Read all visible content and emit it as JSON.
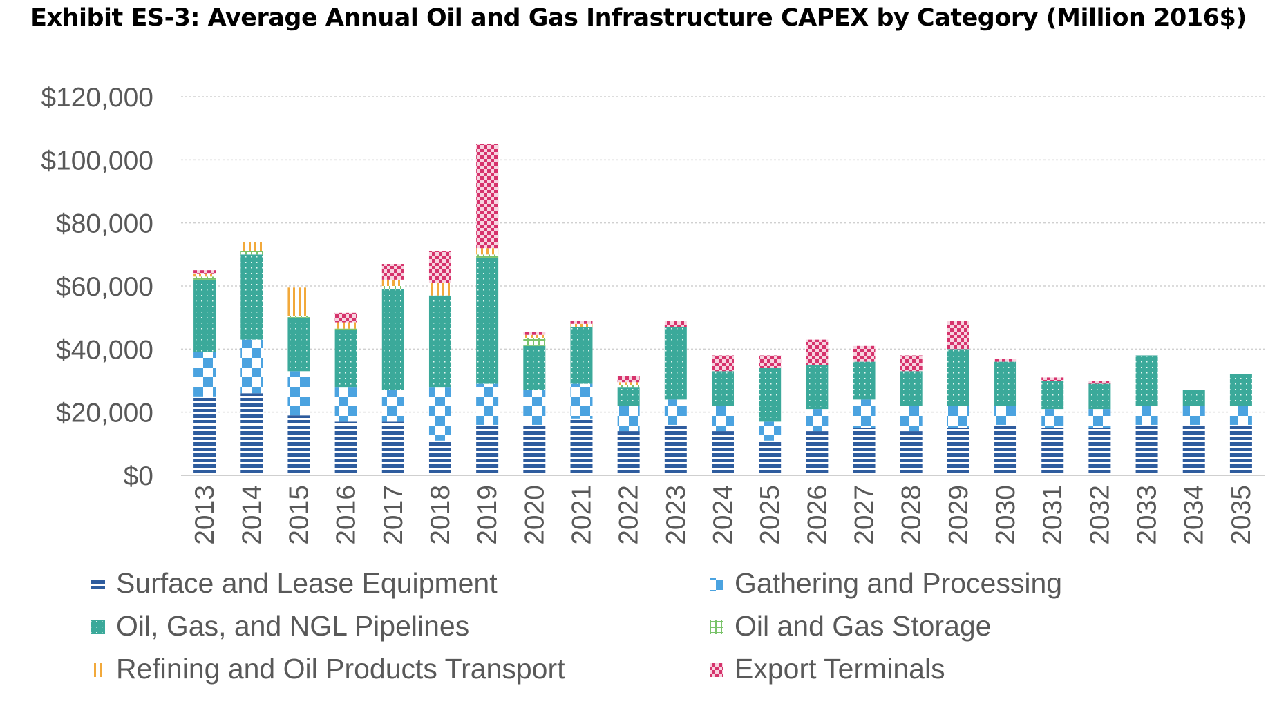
{
  "chart_data": {
    "type": "bar",
    "stacked": true,
    "title": "Exhibit ES-3: Average Annual Oil and Gas Infrastructure CAPEX by Category (Million 2016$)",
    "xlabel": "",
    "ylabel": "",
    "ylim": [
      0,
      120000
    ],
    "yticks": [
      0,
      20000,
      40000,
      60000,
      80000,
      100000,
      120000
    ],
    "ytick_labels": [
      "$0",
      "$20,000",
      "$40,000",
      "$60,000",
      "$80,000",
      "$100,000",
      "$120,000"
    ],
    "grid": true,
    "legend_position": "bottom",
    "categories": [
      "2013",
      "2014",
      "2015",
      "2016",
      "2017",
      "2018",
      "2019",
      "2020",
      "2021",
      "2022",
      "2023",
      "2024",
      "2025",
      "2026",
      "2027",
      "2028",
      "2029",
      "2030",
      "2031",
      "2032",
      "2033",
      "2034",
      "2035"
    ],
    "series": [
      {
        "name": "Surface and Lease Equipment",
        "color": "#2E5C9E",
        "pattern": "horizontal-lines",
        "values": [
          25000,
          26000,
          19000,
          17000,
          17000,
          11000,
          16000,
          16000,
          18000,
          14000,
          16000,
          14000,
          11000,
          14000,
          15000,
          14000,
          15000,
          16000,
          15000,
          15000,
          16000,
          16000,
          16000
        ]
      },
      {
        "name": "Gathering and Processing",
        "color": "#4BA3E0",
        "pattern": "checker",
        "values": [
          14000,
          17000,
          14000,
          11000,
          10000,
          17000,
          13000,
          11000,
          11000,
          8000,
          8000,
          8000,
          6000,
          7000,
          9000,
          8000,
          7000,
          6000,
          6000,
          6000,
          6000,
          6000,
          6000
        ]
      },
      {
        "name": "Oil, Gas, and NGL Pipelines",
        "color": "#3BA99A",
        "pattern": "dotted",
        "values": [
          23000,
          27000,
          17000,
          18000,
          32000,
          29000,
          40000,
          14000,
          18000,
          6000,
          23000,
          11000,
          17000,
          14000,
          12000,
          11000,
          18000,
          14000,
          9000,
          8000,
          16000,
          5000,
          10000
        ]
      },
      {
        "name": "Oil and Gas Storage",
        "color": "#7AC36A",
        "pattern": "plus",
        "values": [
          1000,
          1000,
          500,
          500,
          1000,
          0,
          1000,
          2500,
          0,
          500,
          0,
          0,
          0,
          0,
          0,
          0,
          0,
          0,
          0,
          0,
          0,
          0,
          0
        ]
      },
      {
        "name": "Refining and Oil Products Transport",
        "color": "#F2A93B",
        "pattern": "vertical-lines",
        "values": [
          1000,
          3000,
          9000,
          2000,
          2000,
          4000,
          2000,
          1000,
          1000,
          1000,
          0,
          0,
          0,
          0,
          0,
          0,
          0,
          0,
          0,
          0,
          0,
          0,
          0
        ]
      },
      {
        "name": "Export Terminals",
        "color": "#D6336C",
        "pattern": "crosshatch",
        "values": [
          1000,
          0,
          0,
          3000,
          5000,
          10000,
          33000,
          1000,
          1000,
          2000,
          2000,
          5000,
          4000,
          8000,
          5000,
          5000,
          9000,
          1000,
          1000,
          1000,
          0,
          0,
          0
        ]
      }
    ]
  }
}
